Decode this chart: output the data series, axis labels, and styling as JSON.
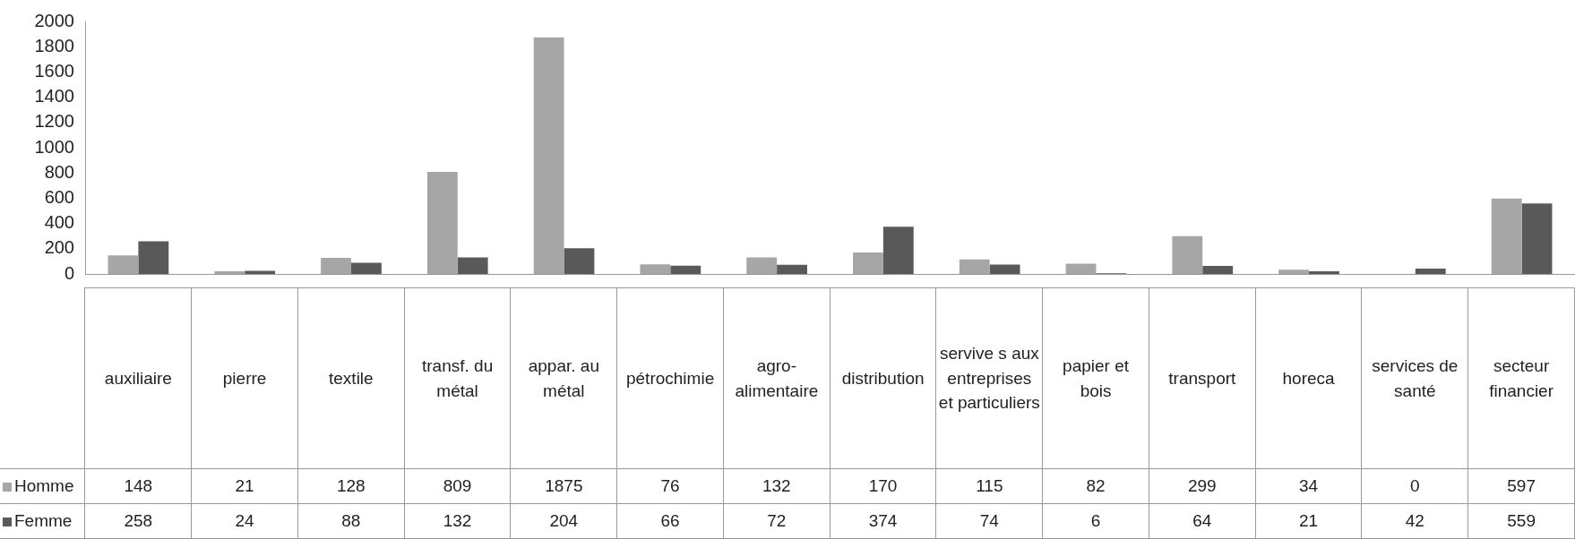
{
  "chart_data": {
    "type": "bar",
    "categories": [
      "auxiliaire",
      "pierre",
      "textile",
      "transf. du métal",
      "appar. au métal",
      "pétrochimie",
      "agro-alimentaire",
      "distribution",
      "servive s aux entreprises et particuliers",
      "papier et bois",
      "transport",
      "horeca",
      "services de santé",
      "secteur financier"
    ],
    "series": [
      {
        "name": "Homme",
        "color": "#a6a6a6",
        "values": [
          148,
          21,
          128,
          809,
          1875,
          76,
          132,
          170,
          115,
          82,
          299,
          34,
          0,
          597
        ]
      },
      {
        "name": "Femme",
        "color": "#595959",
        "values": [
          258,
          24,
          88,
          132,
          204,
          66,
          72,
          374,
          74,
          6,
          64,
          21,
          42,
          559
        ]
      }
    ],
    "ylim": [
      0,
      2000
    ],
    "yticks": [
      0,
      200,
      400,
      600,
      800,
      1000,
      1200,
      1400,
      1600,
      1800,
      2000
    ],
    "data_labels": true,
    "legend": "bottom left"
  }
}
